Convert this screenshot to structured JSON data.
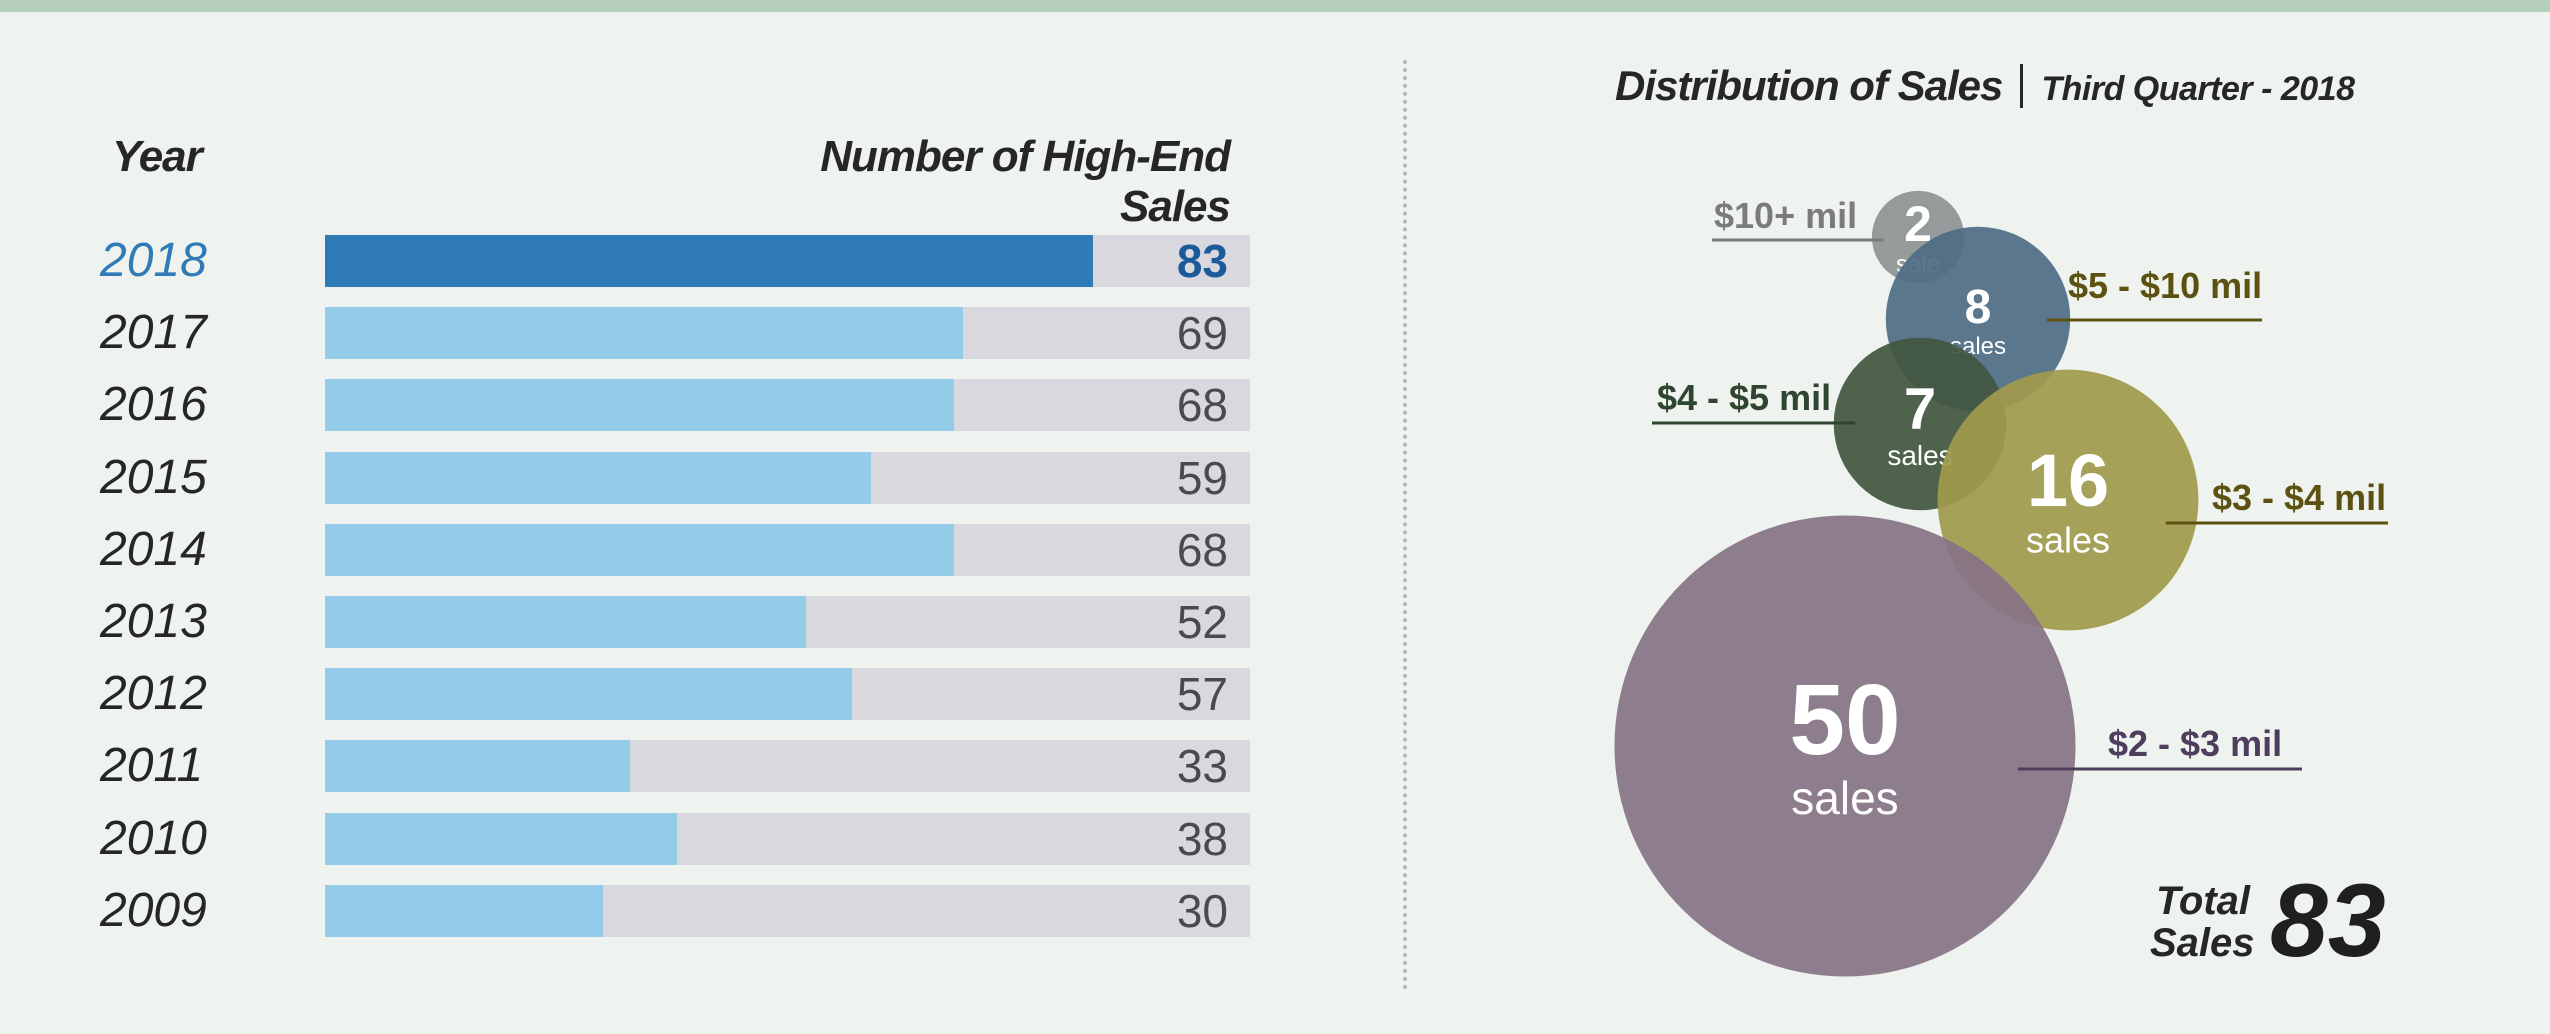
{
  "chart_data": [
    {
      "type": "bar",
      "orientation": "horizontal",
      "headers": {
        "category": "Year",
        "value": "Number of High-End Sales"
      },
      "categories": [
        "2018",
        "2017",
        "2016",
        "2015",
        "2014",
        "2013",
        "2012",
        "2011",
        "2010",
        "2009"
      ],
      "values": [
        83,
        69,
        68,
        59,
        68,
        52,
        57,
        33,
        38,
        30
      ],
      "highlight": "2018",
      "xlim": [
        0,
        100
      ],
      "colors": {
        "bar": "#93cbe9",
        "highlight": "#2f7bb7",
        "track": "#d8d8de"
      }
    },
    {
      "type": "bubble",
      "title": "Distribution of Sales",
      "subtitle": "Third Quarter - 2018",
      "bubbles": [
        {
          "range": "$10+ mil",
          "count": 2,
          "unit": "sale",
          "color": "#8d9393",
          "label_color": "#7b7b7b",
          "label_side": "left"
        },
        {
          "range": "$5 - $10 mil",
          "count": 8,
          "unit": "sales",
          "color": "#4f6d85",
          "label_color": "#5c5110",
          "label_side": "right"
        },
        {
          "range": "$4 - $5 mil",
          "count": 7,
          "unit": "sales",
          "color": "#425640",
          "label_color": "#2e4630",
          "label_side": "left"
        },
        {
          "range": "$3 - $4 mil",
          "count": 16,
          "unit": "sales",
          "color": "#a09a4c",
          "label_color": "#5c5110",
          "label_side": "right"
        },
        {
          "range": "$2 - $3 mil",
          "count": 50,
          "unit": "sales",
          "color": "#877385",
          "label_color": "#4e3d5c",
          "label_side": "right"
        }
      ],
      "total": {
        "label_line1": "Total",
        "label_line2": "Sales",
        "value": "83"
      }
    }
  ]
}
